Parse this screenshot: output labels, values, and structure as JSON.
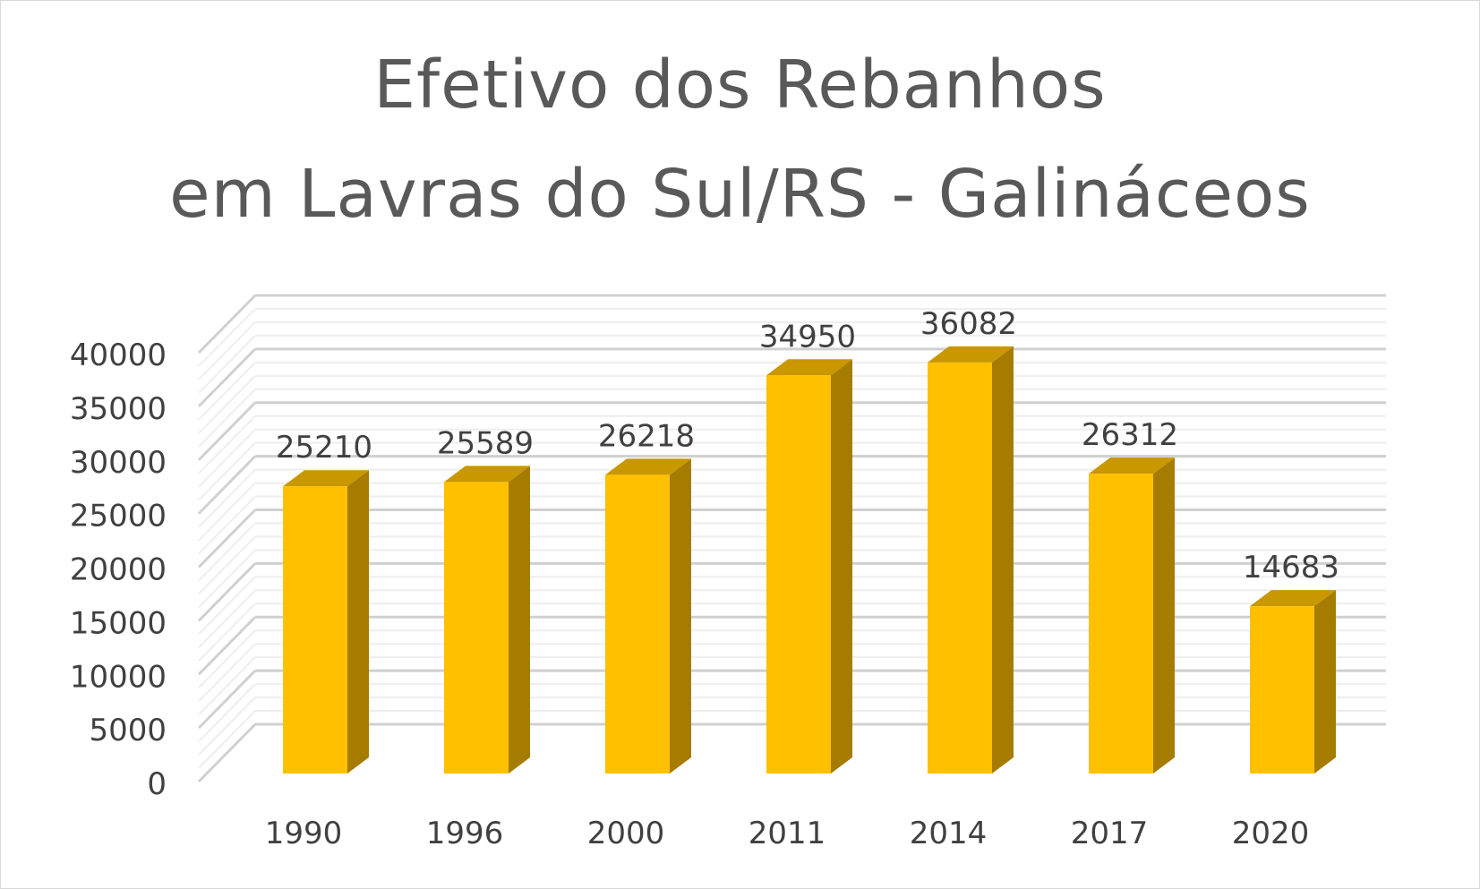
{
  "chart_data": {
    "type": "bar",
    "title_lines": [
      "Efetivo dos Rebanhos",
      "em Lavras do Sul/RS - Galináceos"
    ],
    "categories": [
      "1990",
      "1996",
      "2000",
      "2011",
      "2014",
      "2017",
      "2020"
    ],
    "values": [
      25210,
      25589,
      26218,
      34950,
      36082,
      26312,
      14683
    ],
    "data_labels": [
      "25210",
      "25589",
      "26218",
      "34950",
      "36082",
      "26312",
      "14683"
    ],
    "y_ticks": [
      "0",
      "5000",
      "10000",
      "15000",
      "20000",
      "25000",
      "30000",
      "35000",
      "40000"
    ],
    "ylim": [
      0,
      40000
    ],
    "grid": true,
    "legend": "none",
    "style": "3d-column",
    "colors": {
      "bar_front": "#FFC000",
      "bar_side": "#A67C00",
      "bar_top": "#C99700",
      "text": "#404040",
      "title": "#595959",
      "grid": "#d9d9d9"
    }
  }
}
